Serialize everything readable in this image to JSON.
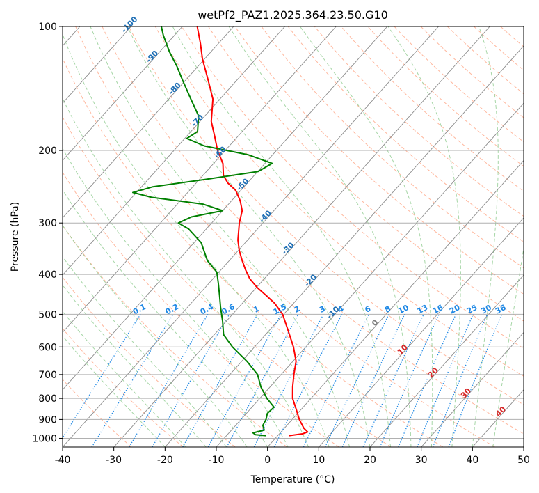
{
  "chart_data": {
    "type": "line",
    "title": "wetPf2_PAZ1.2025.364.23.50.G10",
    "xlabel": "Temperature (°C)",
    "ylabel": "Pressure (hPa)",
    "xlim": [
      -40,
      50
    ],
    "ylim": [
      1050,
      100
    ],
    "y_scale": "log",
    "skew": "isotherms at about 45 degrees",
    "grid": true,
    "x_ticks": [
      -40,
      -30,
      -20,
      -10,
      0,
      10,
      20,
      30,
      40,
      50
    ],
    "y_ticks": [
      100,
      200,
      300,
      400,
      500,
      600,
      700,
      800,
      900,
      1000
    ],
    "series": [
      {
        "role": "temperature",
        "color": "#ff0000",
        "points": [
          {
            "p": 985,
            "t": 2.2
          },
          {
            "p": 975,
            "t": 4.5
          },
          {
            "p": 965,
            "t": 5.2
          },
          {
            "p": 945,
            "t": 3.8
          },
          {
            "p": 900,
            "t": 1.4
          },
          {
            "p": 850,
            "t": -1.0
          },
          {
            "p": 800,
            "t": -3.6
          },
          {
            "p": 750,
            "t": -5.6
          },
          {
            "p": 700,
            "t": -7.5
          },
          {
            "p": 650,
            "t": -9.4
          },
          {
            "p": 600,
            "t": -12.4
          },
          {
            "p": 550,
            "t": -16.1
          },
          {
            "p": 500,
            "t": -20.2
          },
          {
            "p": 470,
            "t": -23.7
          },
          {
            "p": 450,
            "t": -26.7
          },
          {
            "p": 430,
            "t": -29.9
          },
          {
            "p": 410,
            "t": -32.8
          },
          {
            "p": 390,
            "t": -35.2
          },
          {
            "p": 370,
            "t": -37.5
          },
          {
            "p": 350,
            "t": -39.8
          },
          {
            "p": 330,
            "t": -41.9
          },
          {
            "p": 300,
            "t": -44.6
          },
          {
            "p": 280,
            "t": -46.2
          },
          {
            "p": 265,
            "t": -48.3
          },
          {
            "p": 250,
            "t": -51.0
          },
          {
            "p": 240,
            "t": -53.8
          },
          {
            "p": 230,
            "t": -56.0
          },
          {
            "p": 215,
            "t": -58.2
          },
          {
            "p": 200,
            "t": -61.5
          },
          {
            "p": 185,
            "t": -64.5
          },
          {
            "p": 170,
            "t": -67.8
          },
          {
            "p": 150,
            "t": -71.4
          },
          {
            "p": 135,
            "t": -75.6
          },
          {
            "p": 120,
            "t": -80.4
          },
          {
            "p": 110,
            "t": -83.5
          },
          {
            "p": 100,
            "t": -87.1
          }
        ]
      },
      {
        "role": "dewpoint",
        "color": "#008000",
        "points": [
          {
            "p": 985,
            "t": -2.3
          },
          {
            "p": 980,
            "t": -4.5
          },
          {
            "p": 970,
            "t": -5.3
          },
          {
            "p": 955,
            "t": -3.6
          },
          {
            "p": 930,
            "t": -4.7
          },
          {
            "p": 900,
            "t": -5.1
          },
          {
            "p": 870,
            "t": -5.9
          },
          {
            "p": 840,
            "t": -5.7
          },
          {
            "p": 800,
            "t": -8.6
          },
          {
            "p": 750,
            "t": -11.8
          },
          {
            "p": 700,
            "t": -14.6
          },
          {
            "p": 650,
            "t": -19.0
          },
          {
            "p": 600,
            "t": -24.3
          },
          {
            "p": 560,
            "t": -28.2
          },
          {
            "p": 520,
            "t": -30.7
          },
          {
            "p": 480,
            "t": -33.6
          },
          {
            "p": 450,
            "t": -35.8
          },
          {
            "p": 420,
            "t": -38.2
          },
          {
            "p": 395,
            "t": -40.4
          },
          {
            "p": 370,
            "t": -44.3
          },
          {
            "p": 335,
            "t": -48.6
          },
          {
            "p": 310,
            "t": -53.5
          },
          {
            "p": 300,
            "t": -56.5
          },
          {
            "p": 290,
            "t": -55.0
          },
          {
            "p": 280,
            "t": -50.0
          },
          {
            "p": 270,
            "t": -55.0
          },
          {
            "p": 260,
            "t": -66.2
          },
          {
            "p": 253,
            "t": -70.7
          },
          {
            "p": 245,
            "t": -67.8
          },
          {
            "p": 235,
            "t": -58.7
          },
          {
            "p": 225,
            "t": -49.9
          },
          {
            "p": 215,
            "t": -48.6
          },
          {
            "p": 205,
            "t": -54.7
          },
          {
            "p": 195,
            "t": -64.9
          },
          {
            "p": 187,
            "t": -69.6
          },
          {
            "p": 180,
            "t": -68.7
          },
          {
            "p": 165,
            "t": -71.2
          },
          {
            "p": 150,
            "t": -75.7
          },
          {
            "p": 135,
            "t": -80.6
          },
          {
            "p": 125,
            "t": -84.1
          },
          {
            "p": 115,
            "t": -88.2
          },
          {
            "p": 105,
            "t": -92.2
          },
          {
            "p": 100,
            "t": -94.1
          }
        ]
      }
    ],
    "dry_adiabat_labels": [
      "-100",
      "-90",
      "-80",
      "-70",
      "-60",
      "-50",
      "-40",
      "-30",
      "-20",
      "-10"
    ],
    "mixing_ratio_labels": [
      "0.1",
      "0.2",
      "0.4",
      "0.6",
      "1",
      "1.5",
      "2",
      "3",
      "4",
      "6",
      "8",
      "10",
      "13",
      "16",
      "20",
      "25",
      "30",
      "36"
    ],
    "moist_adiabat_labels": [
      "0",
      "10",
      "20",
      "30",
      "40"
    ],
    "colors": {
      "temperature": "#ff0000",
      "dewpoint": "#008000",
      "isotherm": "#8c8c8c",
      "isobar": "#b0b0b0",
      "dry_adiabat": "#ffa585",
      "moist_adiabat": "#90cc90",
      "mixing_ratio": "#1e88e5",
      "dry_label": "#1f6fb5",
      "moist_label": "#d62728",
      "zero_label": "#7f7f7f"
    }
  }
}
